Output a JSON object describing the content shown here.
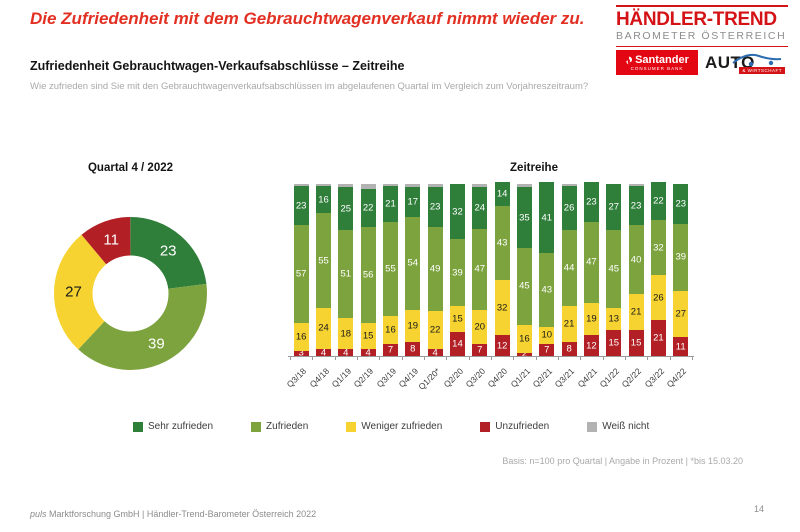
{
  "header": {
    "title": "Die Zufriedenheit mit dem Gebrauchtwagenverkauf nimmt wieder zu.",
    "subtitle": "Zufriedenheit Gebrauchtwagen-Verkaufsabschlüsse – Zeitreihe",
    "question": "Wie zufrieden sind Sie mit den Gebrauchtwagenverkaufsabschlüssen im abgelaufenen Quartal im Vergleich zum Vorjahreszeitraum?"
  },
  "logo": {
    "brand_line1": "HÄNDLER-TREND",
    "brand_line2": "BAROMETER ÖSTERREICH",
    "santander": "Santander",
    "santander_sub": "CONSUMER BANK",
    "auto": "AUTO",
    "auto_sub": "& WIRTSCHAFT"
  },
  "colors": {
    "sehr_zufrieden": "#2f7e3a",
    "zufrieden": "#7da33f",
    "weniger_zufrieden": "#f6d330",
    "unzufrieden": "#b22025",
    "weiss_nicht": "#b2b2b2",
    "accent_red": "#d41317"
  },
  "chart_data": [
    {
      "type": "pie",
      "donut": true,
      "title": "Quartal 4 / 2022",
      "start_angle": "top, clockwise",
      "labels": [
        "Sehr zufrieden",
        "Zufrieden",
        "Weniger zufrieden",
        "Unzufrieden"
      ],
      "values": [
        23,
        39,
        27,
        11
      ],
      "colors": [
        "#2f7e3a",
        "#7da33f",
        "#f6d330",
        "#b22025"
      ],
      "label_colors": [
        "#ffffff",
        "#ffffff",
        "#1a1a1a",
        "#ffffff"
      ]
    },
    {
      "type": "bar",
      "stacked": true,
      "title": "Zeitreihe",
      "unit": "percent",
      "ylim": [
        0,
        100
      ],
      "categories": [
        "Q3/18",
        "Q4/18",
        "Q1/19",
        "Q2/19",
        "Q3/19",
        "Q4/19",
        "Q1/20*",
        "Q2/20",
        "Q3/20",
        "Q4/20",
        "Q1/21",
        "Q2/21",
        "Q3/21",
        "Q4/21",
        "Q1/22",
        "Q2/22",
        "Q3/22",
        "Q4/22"
      ],
      "series": [
        {
          "name": "Unzufrieden",
          "color": "#b22025",
          "label_color": "#ffffff",
          "show_labels": true,
          "values": [
            3,
            4,
            4,
            4,
            7,
            8,
            4,
            14,
            7,
            12,
            2,
            7,
            8,
            12,
            15,
            15,
            21,
            11
          ]
        },
        {
          "name": "Weniger zufrieden",
          "color": "#f6d330",
          "label_color": "#1a1a1a",
          "show_labels": true,
          "values": [
            16,
            24,
            18,
            15,
            16,
            19,
            22,
            15,
            20,
            32,
            16,
            10,
            21,
            19,
            13,
            21,
            26,
            27
          ]
        },
        {
          "name": "Zufrieden",
          "color": "#7da33f",
          "label_color": "#ffffff",
          "show_labels": true,
          "values": [
            57,
            55,
            51,
            56,
            55,
            54,
            49,
            39,
            47,
            43,
            45,
            43,
            44,
            47,
            45,
            40,
            32,
            39
          ]
        },
        {
          "name": "Sehr zufrieden",
          "color": "#2f7e3a",
          "label_color": "#ffffff",
          "show_labels": true,
          "values": [
            23,
            16,
            25,
            22,
            21,
            17,
            23,
            32,
            24,
            14,
            35,
            41,
            26,
            23,
            27,
            23,
            22,
            23
          ]
        },
        {
          "name": "Weiß nicht",
          "color": "#b2b2b2",
          "label_color": "#1a1a1a",
          "show_labels": false,
          "values": [
            1,
            1,
            2,
            3,
            1,
            2,
            2,
            0,
            2,
            0,
            2,
            0,
            1,
            0,
            0,
            1,
            0,
            0
          ]
        }
      ]
    }
  ],
  "legend": {
    "items": [
      {
        "label": "Sehr zufrieden",
        "color": "#2f7e3a"
      },
      {
        "label": "Zufrieden",
        "color": "#7da33f"
      },
      {
        "label": "Weniger zufrieden",
        "color": "#f6d330"
      },
      {
        "label": "Unzufrieden",
        "color": "#b22025"
      },
      {
        "label": "Weiß nicht",
        "color": "#b2b2b2"
      }
    ]
  },
  "notes": {
    "basis": "Basis: n=100 pro Quartal | Angabe in Prozent | *bis 15.03.20"
  },
  "footer": {
    "left_italic": "puls",
    "left_rest": " Marktforschung GmbH | Händler-Trend-Barometer Österreich 2022",
    "page": "14"
  }
}
